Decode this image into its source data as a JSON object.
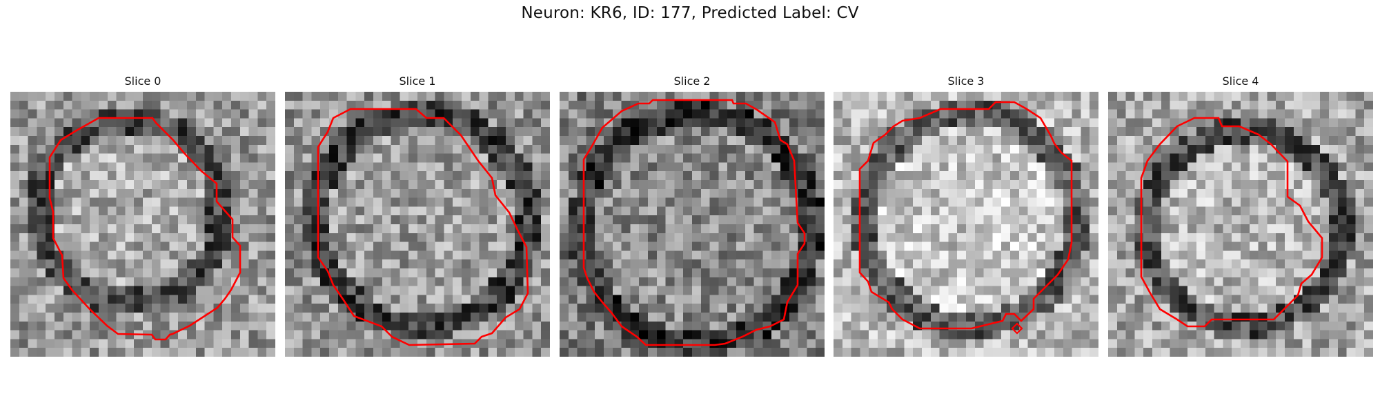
{
  "figure": {
    "title": "Neuron: KR6, ID: 177, Predicted Label: CV"
  },
  "contour_color": "#ff0000",
  "colormap": "gray",
  "panels": [
    {
      "title": "Slice 0"
    },
    {
      "title": "Slice 1"
    },
    {
      "title": "Slice 2"
    },
    {
      "title": "Slice 3"
    },
    {
      "title": "Slice 4"
    }
  ]
}
